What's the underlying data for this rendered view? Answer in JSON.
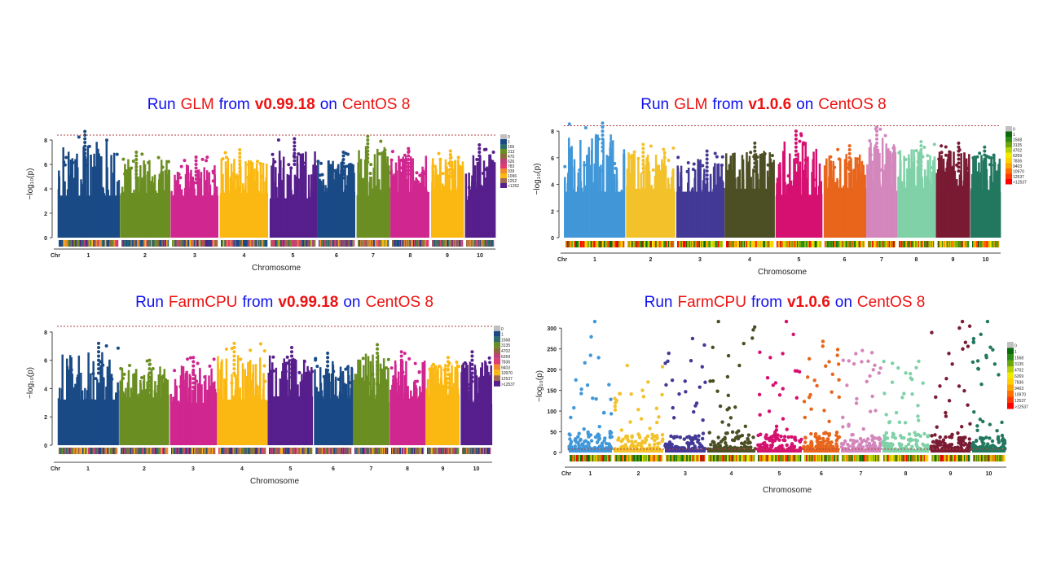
{
  "colors": {
    "title_blue": "#1010ee",
    "title_red": "#ee1111",
    "threshold": "#b04040"
  },
  "chart_data": [
    {
      "type": "scatter",
      "subtype": "manhattan",
      "title_parts": [
        {
          "text": "Run",
          "color": "blue"
        },
        {
          "text": "GLM",
          "color": "red"
        },
        {
          "text": "from",
          "color": "blue"
        },
        {
          "text": "v0.99.18",
          "color": "red",
          "bold": true
        },
        {
          "text": "on",
          "color": "blue"
        },
        {
          "text": "CentOS 8",
          "color": "red"
        }
      ],
      "xlabel": "Chromosome",
      "ylabel": "−log₁₀(p)",
      "x_prefix": "Chr",
      "chromosomes": [
        "1",
        "2",
        "3",
        "4",
        "5",
        "6",
        "7",
        "8",
        "9",
        "10"
      ],
      "yticks": [
        0,
        2,
        4,
        6,
        8
      ],
      "ylim": [
        0,
        8.8
      ],
      "threshold": 8.4,
      "chr_colors": [
        "#1a4a86",
        "#6b8e23",
        "#d0268f",
        "#fbb812",
        "#561f8c",
        "#1a4a86",
        "#6b8e23",
        "#d0268f",
        "#fbb812",
        "#561f8c"
      ],
      "dense_level": [
        4.6,
        4.9,
        4.6,
        4.9,
        4.3,
        5.0,
        4.6,
        5.0,
        5.2,
        4.1
      ],
      "peak": [
        8.7,
        7.0,
        6.6,
        7.2,
        8.1,
        7.0,
        8.3,
        7.3,
        7.1,
        7.6
      ],
      "legend": {
        "labels": [
          "0",
          "1",
          "156",
          "313",
          "470",
          "626",
          "783",
          "939",
          "1096",
          "1252",
          ">1252"
        ],
        "colors": [
          "#c0c0c0",
          "#1a4a86",
          "#2f6b6b",
          "#6b8e23",
          "#8a6a3a",
          "#c0407a",
          "#e03a70",
          "#f08a30",
          "#fbb812",
          "#a06a50",
          "#561f8c"
        ]
      }
    },
    {
      "type": "scatter",
      "subtype": "manhattan",
      "title_parts": [
        {
          "text": "Run",
          "color": "blue"
        },
        {
          "text": "GLM",
          "color": "red"
        },
        {
          "text": "from",
          "color": "blue"
        },
        {
          "text": "v1.0.6",
          "color": "red",
          "bold": true
        },
        {
          "text": "on",
          "color": "blue"
        },
        {
          "text": "CentOS 8",
          "color": "red"
        }
      ],
      "xlabel": "Chromosome",
      "ylabel": "−log₁₀(p)",
      "x_prefix": "Chr",
      "chromosomes": [
        "1",
        "2",
        "3",
        "4",
        "5",
        "6",
        "7",
        "8",
        "9",
        "10"
      ],
      "yticks": [
        0,
        2,
        4,
        6,
        8
      ],
      "ylim": [
        0,
        8.8
      ],
      "threshold": 8.4,
      "chr_colors": [
        "#4197d8",
        "#f3c22b",
        "#433996",
        "#4c4e24",
        "#d61070",
        "#e8651c",
        "#d387bc",
        "#80d1a8",
        "#7a1a33",
        "#22785f"
      ],
      "dense_level": [
        4.6,
        4.9,
        4.6,
        4.9,
        4.3,
        5.0,
        4.6,
        5.0,
        5.2,
        4.8
      ],
      "peak": [
        8.6,
        7.0,
        6.5,
        7.1,
        8.0,
        6.9,
        8.3,
        7.2,
        7.1,
        6.8
      ],
      "legend": {
        "labels": [
          "0",
          "1",
          "1568",
          "3135",
          "4702",
          "6269",
          "7836",
          "9403",
          "10970",
          "12537",
          ">12537"
        ],
        "colors": [
          "#c0c0c0",
          "#0a6a0a",
          "#2e8b16",
          "#6aa80e",
          "#b5d10a",
          "#f2ea00",
          "#ffd000",
          "#ffa500",
          "#ff7000",
          "#ff3a00",
          "#ff0000"
        ]
      }
    },
    {
      "type": "scatter",
      "subtype": "manhattan",
      "title_parts": [
        {
          "text": "Run",
          "color": "blue"
        },
        {
          "text": "FarmCPU",
          "color": "red"
        },
        {
          "text": "from",
          "color": "blue"
        },
        {
          "text": "v0.99.18",
          "color": "red",
          "bold": true
        },
        {
          "text": "on",
          "color": "blue"
        },
        {
          "text": "CentOS 8",
          "color": "red"
        }
      ],
      "xlabel": "Chromosome",
      "ylabel": "−log₁₀(p)",
      "x_prefix": "Chr",
      "chromosomes": [
        "1",
        "2",
        "3",
        "4",
        "5",
        "6",
        "7",
        "8",
        "9",
        "10"
      ],
      "yticks": [
        0,
        2,
        4,
        6,
        8
      ],
      "ylim": [
        0,
        8.8
      ],
      "threshold": 8.4,
      "chr_colors": [
        "#1a4a86",
        "#6b8e23",
        "#d0268f",
        "#fbb812",
        "#561f8c",
        "#1a4a86",
        "#6b8e23",
        "#d0268f",
        "#fbb812",
        "#561f8c"
      ],
      "dense_level": [
        4.3,
        4.5,
        4.0,
        4.3,
        4.6,
        4.4,
        4.2,
        4.4,
        4.8,
        4.0
      ],
      "peak": [
        7.2,
        6.0,
        6.2,
        7.2,
        6.9,
        6.5,
        7.1,
        6.6,
        6.2,
        6.6
      ],
      "legend": {
        "labels": [
          "0",
          "1",
          "1568",
          "3135",
          "4702",
          "6269",
          "7836",
          "9403",
          "10970",
          "12537",
          ">12537"
        ],
        "colors": [
          "#c0c0c0",
          "#1a4a86",
          "#2f6b6b",
          "#6b8e23",
          "#8a6a3a",
          "#c0407a",
          "#e03a70",
          "#f08a30",
          "#fbb812",
          "#a06a50",
          "#561f8c"
        ]
      }
    },
    {
      "type": "scatter",
      "subtype": "manhattan",
      "title_parts": [
        {
          "text": "Run",
          "color": "blue"
        },
        {
          "text": "FarmCPU",
          "color": "red"
        },
        {
          "text": "from",
          "color": "blue"
        },
        {
          "text": "v1.0.6",
          "color": "red",
          "bold": true
        },
        {
          "text": "on",
          "color": "blue"
        },
        {
          "text": "CentOS 8",
          "color": "red"
        }
      ],
      "xlabel": "Chromosome",
      "ylabel": "−log₁₀(p)",
      "x_prefix": "Chr",
      "chromosomes": [
        "1",
        "2",
        "3",
        "4",
        "5",
        "6",
        "7",
        "8",
        "9",
        "10"
      ],
      "yticks": [
        0,
        50,
        100,
        150,
        200,
        250,
        300
      ],
      "ylim": [
        0,
        320
      ],
      "threshold": 8,
      "chr_colors": [
        "#4197d8",
        "#f3c22b",
        "#433996",
        "#4c4e24",
        "#d61070",
        "#e8651c",
        "#d387bc",
        "#80d1a8",
        "#7a1a33",
        "#22785f"
      ],
      "dense_level": [
        35,
        30,
        30,
        35,
        30,
        35,
        30,
        35,
        30,
        25
      ],
      "peak": [
        316,
        210,
        275,
        316,
        316,
        268,
        246,
        220,
        316,
        316
      ],
      "legend": {
        "labels": [
          "0",
          "1",
          "1568",
          "3135",
          "4702",
          "6269",
          "7836",
          "9403",
          "10970",
          "12537",
          ">12537"
        ],
        "colors": [
          "#c0c0c0",
          "#0a6a0a",
          "#2e8b16",
          "#6aa80e",
          "#b5d10a",
          "#f2ea00",
          "#ffd000",
          "#ffa500",
          "#ff7000",
          "#ff3a00",
          "#ff0000"
        ]
      }
    }
  ]
}
